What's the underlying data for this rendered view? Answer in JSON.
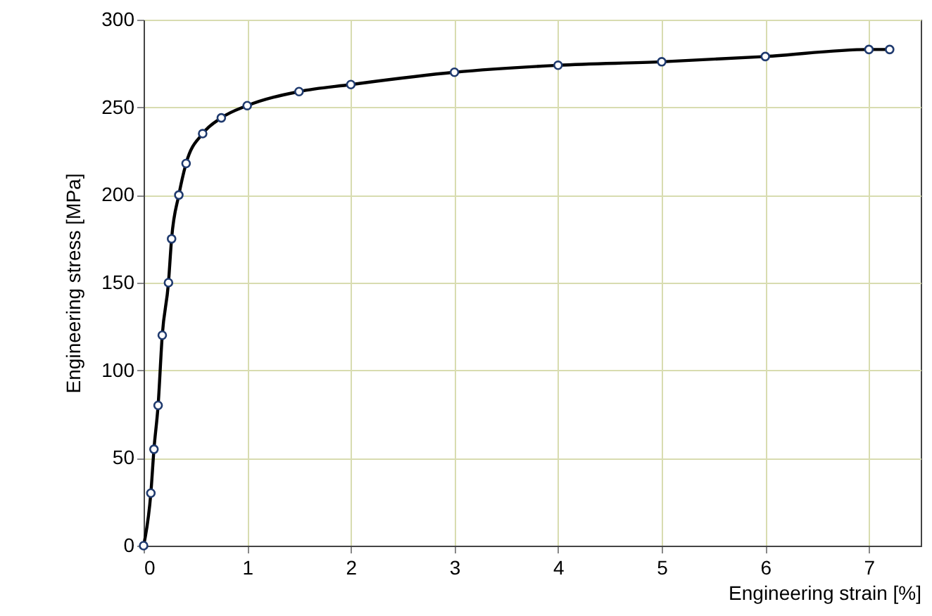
{
  "chart_data": {
    "type": "line",
    "xlabel": "Engineering strain [%]",
    "ylabel": "Engineering stress [MPa]",
    "x": [
      0,
      0.07,
      0.1,
      0.14,
      0.18,
      0.24,
      0.27,
      0.34,
      0.41,
      0.57,
      0.75,
      1.0,
      1.5,
      2,
      3,
      4,
      5,
      6,
      7,
      7.2
    ],
    "series": [
      {
        "color": "#000000",
        "values": [
          0,
          30,
          55,
          80,
          120,
          150,
          175,
          200,
          218,
          235,
          244,
          251,
          259,
          263,
          270,
          274,
          276,
          279,
          283,
          283
        ]
      }
    ],
    "xlim": [
      0,
      7.5
    ],
    "xticks": [
      0,
      1,
      2,
      3,
      4,
      5,
      6,
      7
    ],
    "ylim": [
      0,
      300
    ],
    "yticks": [
      0,
      50,
      100,
      150,
      200,
      250,
      300
    ],
    "grid": true,
    "marker": "circle",
    "line_style": "solid"
  }
}
